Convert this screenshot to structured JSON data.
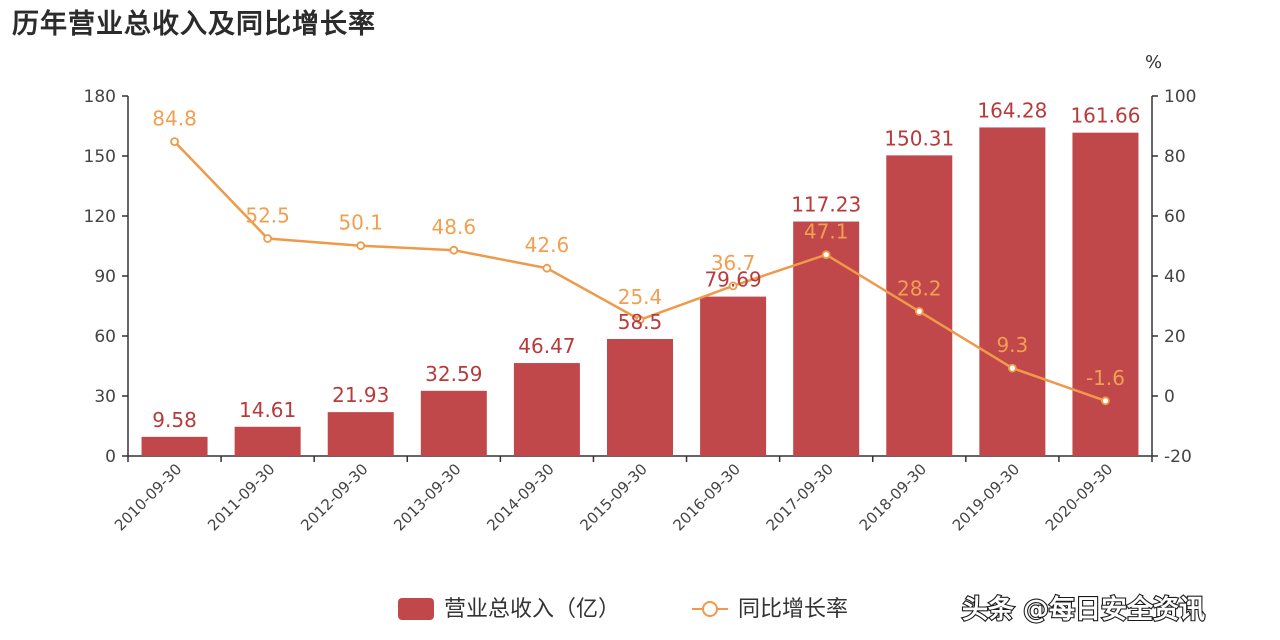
{
  "title": "历年营业总收入及同比增长率",
  "watermark": "头条 @每日安全资讯",
  "colors": {
    "bar": "#c0474a",
    "line": "#ef9a4a",
    "axis": "#333333"
  },
  "chart_data": {
    "type": "bar",
    "categories": [
      "2010-09-30",
      "2011-09-30",
      "2012-09-30",
      "2013-09-30",
      "2014-09-30",
      "2015-09-30",
      "2016-09-30",
      "2017-09-30",
      "2018-09-30",
      "2019-09-30",
      "2020-09-30"
    ],
    "series": [
      {
        "name": "营业总收入（亿）",
        "type": "bar",
        "axis": "left",
        "values": [
          9.58,
          14.61,
          21.93,
          32.59,
          46.47,
          58.5,
          79.69,
          117.23,
          150.31,
          164.28,
          161.66
        ],
        "labels": [
          "9.58",
          "14.61",
          "21.93",
          "32.59",
          "46.47",
          "58.5",
          "79.69",
          "117.23",
          "150.31",
          "164.28",
          "161.66"
        ]
      },
      {
        "name": "同比增长率",
        "type": "line",
        "axis": "right",
        "values": [
          84.8,
          52.5,
          50.1,
          48.6,
          42.6,
          25.4,
          36.7,
          47.1,
          28.2,
          9.3,
          -1.6
        ],
        "labels": [
          "84.8",
          "52.5",
          "50.1",
          "48.6",
          "42.6",
          "25.4",
          "36.7",
          "47.1",
          "28.2",
          "9.3",
          "-1.6"
        ]
      }
    ],
    "y_left": {
      "lim": [
        0,
        180
      ],
      "ticks": [
        "0",
        "30",
        "60",
        "90",
        "120",
        "150",
        "180"
      ]
    },
    "y_right": {
      "lim": [
        -20,
        100
      ],
      "ticks": [
        "-20",
        "0",
        "20",
        "40",
        "60",
        "80",
        "100"
      ],
      "unit": "%"
    },
    "legend_position": "bottom",
    "grid": false
  }
}
